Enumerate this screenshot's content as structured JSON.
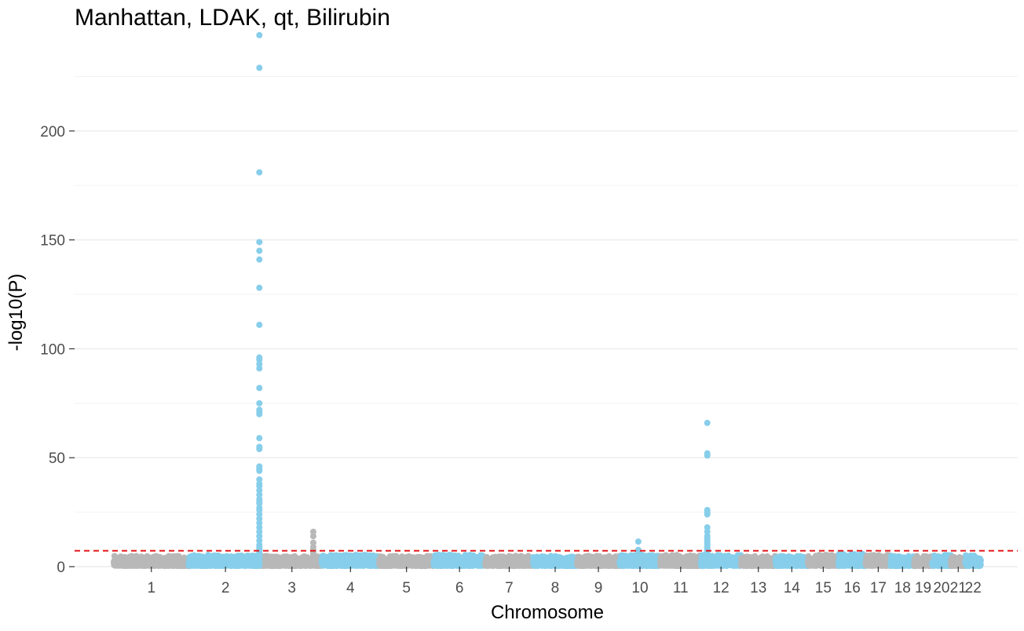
{
  "chart_data": {
    "type": "scatter",
    "title": "Manhattan, LDAK, qt, Bilirubin",
    "xlabel": "Chromosome",
    "ylabel": "-log10(P)",
    "ylim": [
      0,
      245
    ],
    "y_ticks": [
      0,
      50,
      100,
      150,
      200
    ],
    "grid": true,
    "significance_threshold": 7.3,
    "colors": {
      "odd_chromosome": "#b8b8b8",
      "even_chromosome": "#87ceeb",
      "threshold": "#e31a1c",
      "grid": "#ebebeb"
    },
    "chromosomes": [
      {
        "label": "1",
        "length_mb": 249,
        "baseline_max": 4.5
      },
      {
        "label": "2",
        "length_mb": 243,
        "baseline_max": 5
      },
      {
        "label": "3",
        "length_mb": 198,
        "baseline_max": 4.5
      },
      {
        "label": "4",
        "length_mb": 191,
        "baseline_max": 5
      },
      {
        "label": "5",
        "length_mb": 181,
        "baseline_max": 4.5
      },
      {
        "label": "6",
        "length_mb": 171,
        "baseline_max": 5
      },
      {
        "label": "7",
        "length_mb": 159,
        "baseline_max": 4.5
      },
      {
        "label": "8",
        "length_mb": 146,
        "baseline_max": 4.5
      },
      {
        "label": "9",
        "length_mb": 141,
        "baseline_max": 4.5
      },
      {
        "label": "10",
        "length_mb": 135,
        "baseline_max": 5
      },
      {
        "label": "11",
        "length_mb": 135,
        "baseline_max": 5
      },
      {
        "label": "12",
        "length_mb": 133,
        "baseline_max": 5
      },
      {
        "label": "13",
        "length_mb": 115,
        "baseline_max": 4.5
      },
      {
        "label": "14",
        "length_mb": 107,
        "baseline_max": 4.5
      },
      {
        "label": "15",
        "length_mb": 102,
        "baseline_max": 5
      },
      {
        "label": "16",
        "length_mb": 90,
        "baseline_max": 5.5
      },
      {
        "label": "17",
        "length_mb": 83,
        "baseline_max": 5
      },
      {
        "label": "18",
        "length_mb": 78,
        "baseline_max": 4.5
      },
      {
        "label": "19",
        "length_mb": 59,
        "baseline_max": 4.5
      },
      {
        "label": "20",
        "length_mb": 63,
        "baseline_max": 5
      },
      {
        "label": "21",
        "length_mb": 48,
        "baseline_max": 4
      },
      {
        "label": "22",
        "length_mb": 51,
        "baseline_max": 5
      }
    ],
    "peaks": [
      {
        "chromosome": "2",
        "position_mb": 234,
        "values": [
          244,
          229,
          181,
          149,
          145,
          141,
          128,
          111,
          96,
          95,
          93,
          91,
          82,
          75,
          72,
          71,
          70,
          59,
          55,
          54,
          46,
          45,
          44,
          40,
          38,
          37,
          35,
          33,
          31,
          30,
          29,
          27,
          26,
          24,
          22,
          20,
          18,
          16,
          14,
          12,
          10,
          9,
          8
        ]
      },
      {
        "chromosome": "3",
        "position_mb": 170,
        "values": [
          16,
          14,
          11,
          9,
          7
        ]
      },
      {
        "chromosome": "10",
        "position_mb": 62,
        "values": [
          11.5
        ]
      },
      {
        "chromosome": "12",
        "position_mb": 21,
        "values": [
          66,
          52,
          51,
          26,
          25,
          24,
          18,
          16,
          14,
          13,
          12,
          11,
          10,
          9,
          8,
          7
        ]
      }
    ]
  }
}
